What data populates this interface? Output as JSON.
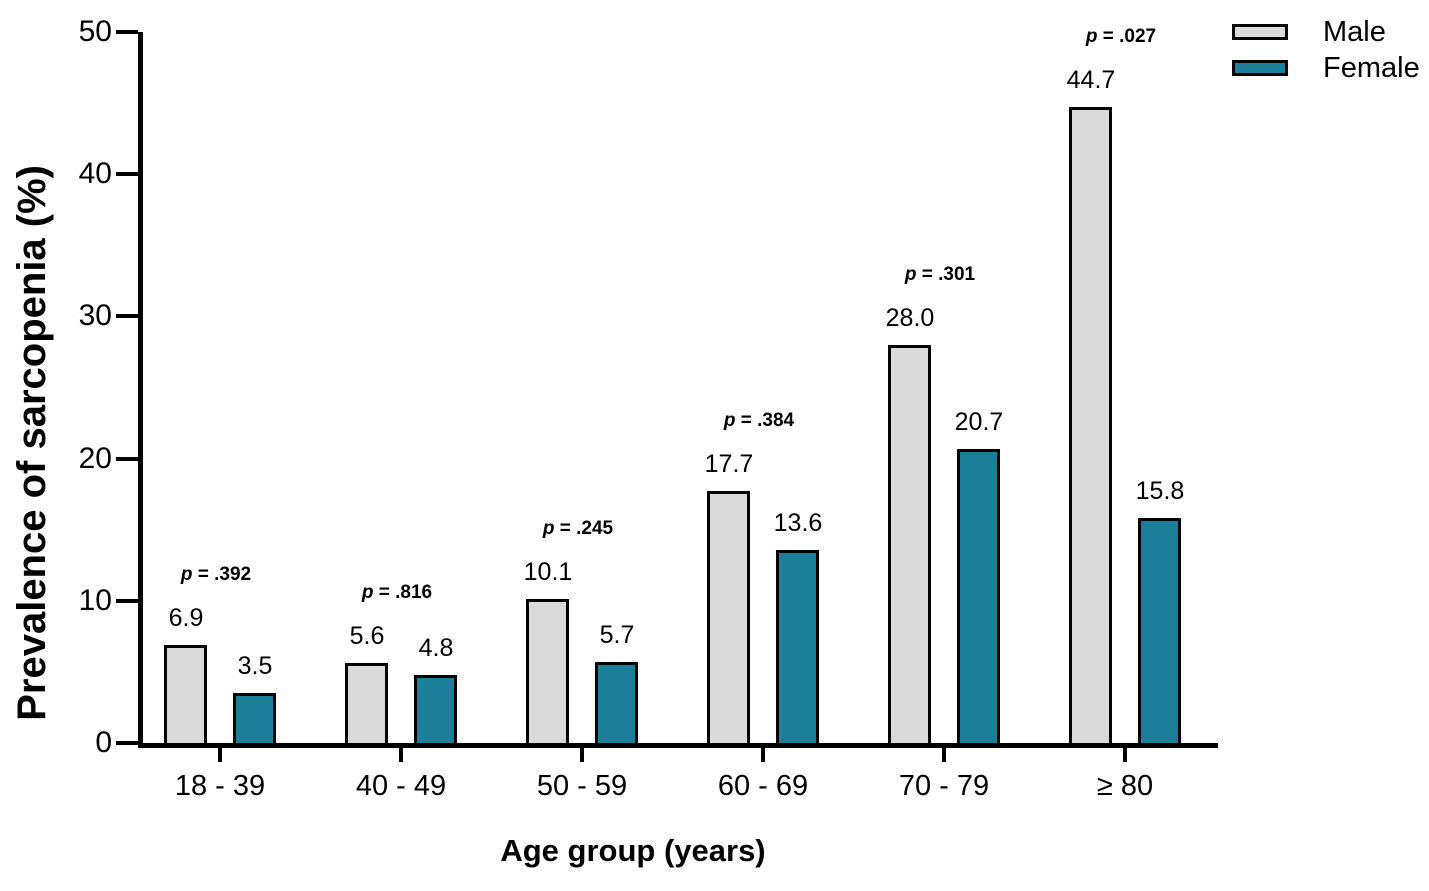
{
  "chart_data": {
    "type": "bar",
    "title": "",
    "xlabel": "Age group (years)",
    "ylabel": "Prevalence of sarcopenia (%)",
    "categories": [
      "18 - 39",
      "40 - 49",
      "50 - 59",
      "60 - 69",
      "70 - 79",
      "≥ 80"
    ],
    "series": [
      {
        "name": "Male",
        "color": "#d9d9d9",
        "values": [
          6.9,
          5.6,
          10.1,
          17.7,
          28.0,
          44.7
        ]
      },
      {
        "name": "Female",
        "color": "#1b7f99",
        "values": [
          3.5,
          4.8,
          5.7,
          13.6,
          20.7,
          15.8
        ]
      }
    ],
    "value_labels": [
      [
        "6.9",
        "5.6",
        "10.1",
        "17.7",
        "28.0",
        "44.7"
      ],
      [
        "3.5",
        "4.8",
        "5.7",
        "13.6",
        "20.7",
        "15.8"
      ]
    ],
    "p_labels": [
      "p = .392",
      "p = .816",
      "p = .245",
      "p = .384",
      "p = .301",
      "p = .027"
    ],
    "ylim": [
      0,
      50
    ],
    "yticks": [
      0,
      10,
      20,
      30,
      40,
      50
    ],
    "grid": false,
    "legend_position": "top-right",
    "bar_edge_color": "#000000",
    "axis_color": "#000000"
  }
}
